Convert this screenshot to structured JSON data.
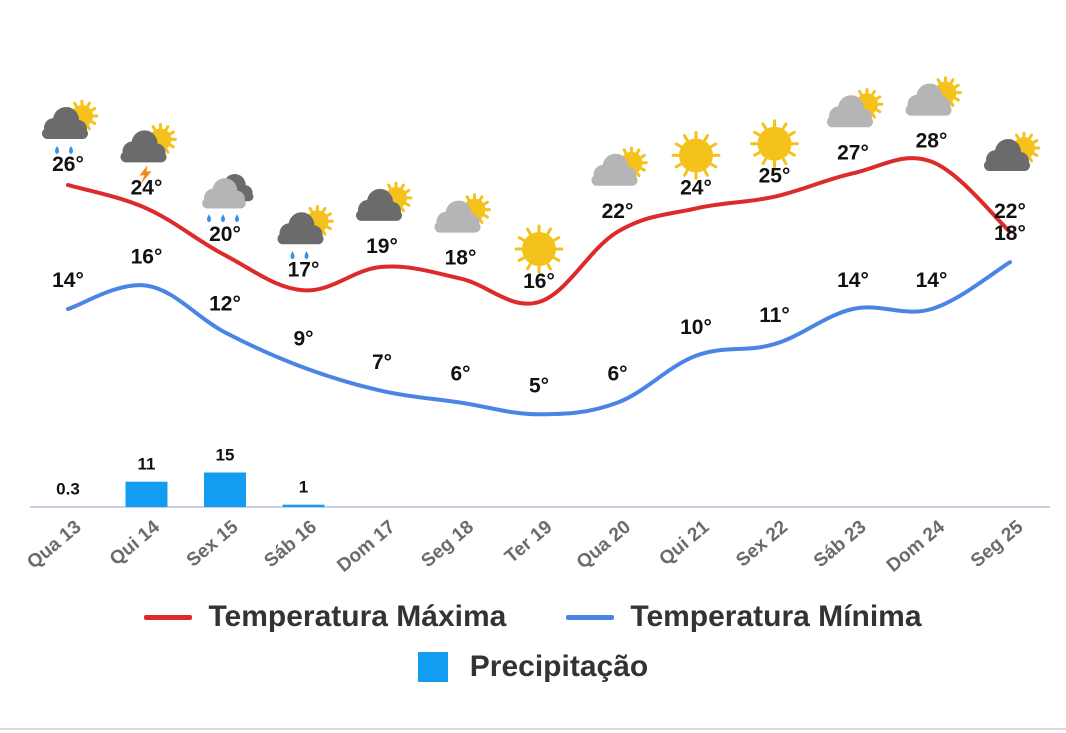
{
  "colors": {
    "max_line": "#dd2a2a",
    "min_line": "#4a85e6",
    "precip_bar": "#129cf2",
    "axis": "#c8d4e6",
    "sun": "#f5c21b",
    "cloud_light": "#b5b5b5",
    "cloud_dark": "#6b6b6b",
    "rain": "#3a8fe8"
  },
  "chart_data": {
    "type": "line",
    "categories": [
      "Qua 13",
      "Qui 14",
      "Sex 15",
      "Sáb 16",
      "Dom 17",
      "Seg 18",
      "Ter 19",
      "Qua 20",
      "Qui 21",
      "Sex 22",
      "Sáb 23",
      "Dom 24",
      "Seg 25"
    ],
    "series": [
      {
        "name": "Temperatura Máxima",
        "values": [
          26,
          24,
          20,
          17,
          19,
          18,
          16,
          22,
          24,
          25,
          27,
          28,
          22
        ]
      },
      {
        "name": "Temperatura Mínima",
        "values": [
          14,
          16,
          12,
          9,
          7,
          6,
          5,
          6,
          10,
          11,
          14,
          14,
          18
        ]
      }
    ],
    "precipitation": {
      "name": "Precipitação",
      "values": [
        0.3,
        11,
        15,
        1,
        null,
        null,
        null,
        null,
        null,
        null,
        null,
        null,
        null
      ],
      "labels": [
        "0.3",
        "11",
        "15",
        "1",
        "",
        "",
        "",
        "",
        "",
        "",
        "",
        "",
        ""
      ]
    },
    "max_labels": [
      "26°",
      "24°",
      "20°",
      "17°",
      "19°",
      "18°",
      "16°",
      "22°",
      "24°",
      "25°",
      "27°",
      "28°",
      "22°"
    ],
    "min_labels": [
      "14°",
      "16°",
      "12°",
      "9°",
      "7°",
      "6°",
      "5°",
      "6°",
      "10°",
      "11°",
      "14°",
      "14°",
      "18°"
    ],
    "weather_icons": [
      "sun-cloud-rain-icon",
      "sun-cloud-thunder-icon",
      "cloud-rain-icon",
      "sun-cloud-rain-icon",
      "sun-cloud-dark-icon",
      "sun-cloud-light-icon",
      "sun-icon",
      "sun-cloud-light-icon",
      "sun-icon",
      "sun-icon",
      "sun-cloud-light-icon",
      "sun-cloud-light-icon",
      "sun-cloud-dark-icon"
    ],
    "legend_position": "bottom",
    "grid": false
  },
  "legend": {
    "max": "Temperatura Máxima",
    "min": "Temperatura Mínima",
    "precip": "Precipitação"
  }
}
